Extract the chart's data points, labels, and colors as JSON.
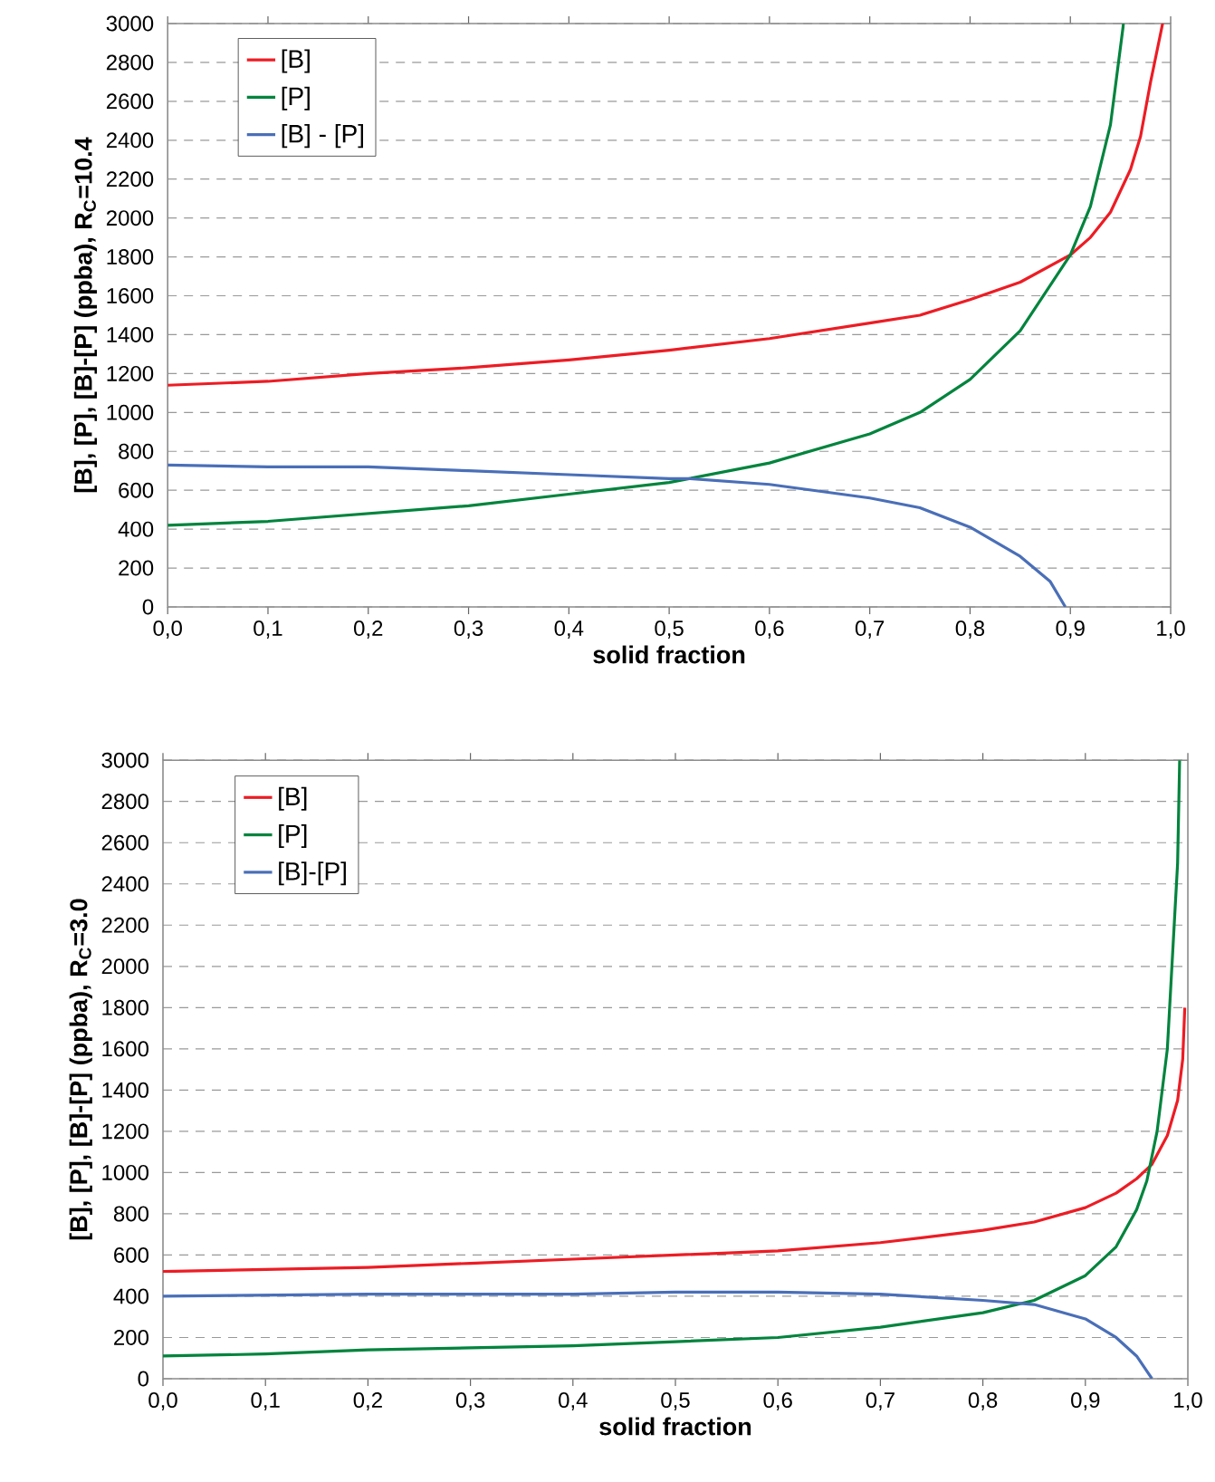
{
  "chart_data": [
    {
      "type": "line",
      "xlabel": "solid fraction",
      "ylabel": "[B], [P], [B]-[P] (ppba), R$_{C}$=10.4",
      "grid": "y",
      "legend": "top left",
      "xlim": [
        0,
        1
      ],
      "xticks": [
        {
          "value": 0,
          "label": "0,0"
        },
        {
          "value": 0.1,
          "label": "0,1"
        },
        {
          "value": 0.2,
          "label": "0,2"
        },
        {
          "value": 0.3,
          "label": "0,3"
        },
        {
          "value": 0.4,
          "label": "0,4"
        },
        {
          "value": 0.5,
          "label": "0,5"
        },
        {
          "value": 0.6,
          "label": "0,6"
        },
        {
          "value": 0.7,
          "label": "0,7"
        },
        {
          "value": 0.8,
          "label": "0,8"
        },
        {
          "value": 0.9,
          "label": "0,9"
        },
        {
          "value": 1,
          "label": "1,0"
        }
      ],
      "ylim": [
        0,
        3000
      ],
      "yticks": [
        0,
        200,
        400,
        600,
        800,
        1000,
        1200,
        1400,
        1600,
        1800,
        2000,
        2200,
        2400,
        2600,
        2800,
        3000
      ],
      "series": [
        {
          "name": "[B]",
          "color": "#ed1c24",
          "x": [
            0,
            0.1,
            0.2,
            0.3,
            0.4,
            0.5,
            0.6,
            0.7,
            0.75,
            0.8,
            0.85,
            0.9,
            0.92,
            0.94,
            0.96,
            0.97,
            0.98,
            0.992
          ],
          "values": [
            1140,
            1160,
            1200,
            1230,
            1270,
            1320,
            1380,
            1460,
            1500,
            1580,
            1670,
            1810,
            1900,
            2030,
            2250,
            2420,
            2700,
            3000
          ]
        },
        {
          "name": "[P]",
          "color": "#00843d",
          "x": [
            0,
            0.1,
            0.2,
            0.3,
            0.4,
            0.5,
            0.6,
            0.7,
            0.75,
            0.8,
            0.85,
            0.9,
            0.92,
            0.94,
            0.953
          ],
          "values": [
            420,
            440,
            480,
            520,
            580,
            640,
            740,
            890,
            1000,
            1170,
            1420,
            1810,
            2060,
            2480,
            3000
          ]
        },
        {
          "name": "[B] - [P]",
          "color": "#4a6fb8",
          "x": [
            0,
            0.1,
            0.2,
            0.3,
            0.4,
            0.5,
            0.52,
            0.6,
            0.7,
            0.75,
            0.8,
            0.85,
            0.88,
            0.895
          ],
          "values": [
            730,
            720,
            720,
            700,
            680,
            660,
            660,
            630,
            560,
            510,
            410,
            260,
            130,
            0
          ]
        }
      ]
    },
    {
      "type": "line",
      "xlabel": "solid fraction",
      "ylabel": "[B], [P], [B]-[P] (ppba), R$_{C}$=3.0",
      "grid": "y",
      "legend": "top left",
      "xlim": [
        0,
        1
      ],
      "xticks": [
        {
          "value": 0,
          "label": "0,0"
        },
        {
          "value": 0.1,
          "label": "0,1"
        },
        {
          "value": 0.2,
          "label": "0,2"
        },
        {
          "value": 0.3,
          "label": "0,3"
        },
        {
          "value": 0.4,
          "label": "0,4"
        },
        {
          "value": 0.5,
          "label": "0,5"
        },
        {
          "value": 0.6,
          "label": "0,6"
        },
        {
          "value": 0.7,
          "label": "0,7"
        },
        {
          "value": 0.8,
          "label": "0,8"
        },
        {
          "value": 0.9,
          "label": "0,9"
        },
        {
          "value": 1,
          "label": "1,0"
        }
      ],
      "ylim": [
        0,
        3000
      ],
      "yticks": [
        0,
        200,
        400,
        600,
        800,
        1000,
        1200,
        1400,
        1600,
        1800,
        2000,
        2200,
        2400,
        2600,
        2800,
        3000
      ],
      "series": [
        {
          "name": "[B]",
          "color": "#ed1c24",
          "x": [
            0,
            0.1,
            0.2,
            0.3,
            0.4,
            0.5,
            0.6,
            0.7,
            0.8,
            0.85,
            0.9,
            0.93,
            0.95,
            0.965,
            0.98,
            0.99,
            0.995,
            0.997
          ],
          "values": [
            520,
            530,
            540,
            560,
            580,
            600,
            620,
            660,
            720,
            760,
            830,
            900,
            970,
            1040,
            1180,
            1350,
            1550,
            1800
          ]
        },
        {
          "name": "[P]",
          "color": "#00843d",
          "x": [
            0,
            0.1,
            0.2,
            0.3,
            0.4,
            0.5,
            0.6,
            0.7,
            0.8,
            0.85,
            0.9,
            0.93,
            0.95,
            0.96,
            0.97,
            0.98,
            0.99,
            0.992
          ],
          "values": [
            110,
            120,
            140,
            150,
            160,
            180,
            200,
            250,
            320,
            380,
            500,
            640,
            820,
            960,
            1200,
            1600,
            2500,
            3000
          ]
        },
        {
          "name": "[B]-[P]",
          "color": "#4a6fb8",
          "x": [
            0,
            0.2,
            0.4,
            0.5,
            0.6,
            0.7,
            0.8,
            0.85,
            0.9,
            0.93,
            0.95,
            0.965
          ],
          "values": [
            400,
            410,
            410,
            420,
            420,
            410,
            380,
            360,
            290,
            200,
            110,
            0
          ]
        }
      ]
    }
  ]
}
